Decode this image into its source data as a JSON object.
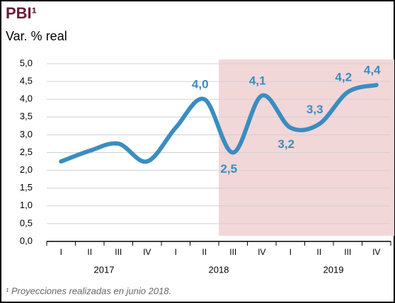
{
  "chart_data": {
    "type": "line",
    "title": "PBI¹",
    "subtitle": "Var. % real",
    "footnote": "¹ Proyecciones realizadas en junio 2018.",
    "categories": [
      "I",
      "II",
      "III",
      "IV",
      "I",
      "II",
      "III",
      "IV",
      "I",
      "II",
      "III",
      "IV"
    ],
    "years": [
      "2017",
      "2018",
      "2019"
    ],
    "series": [
      {
        "color": "#3a8dc0",
        "values": [
          2.25,
          2.55,
          2.75,
          2.25,
          3.2,
          4.0,
          2.5,
          4.1,
          3.2,
          3.3,
          4.2,
          4.4
        ],
        "value_labels": [
          null,
          null,
          null,
          null,
          null,
          "4,0",
          "2,5",
          "4,1",
          "3,2",
          "3,3",
          "4,2",
          "4,4"
        ]
      }
    ],
    "ylim": [
      0,
      5
    ],
    "yticks": [
      {
        "value": 0,
        "label": "0,0"
      },
      {
        "value": 0.5,
        "label": "0,5"
      },
      {
        "value": 1,
        "label": "1,0"
      },
      {
        "value": 1.5,
        "label": "1,5"
      },
      {
        "value": 2,
        "label": "2,0"
      },
      {
        "value": 2.5,
        "label": "2,5"
      },
      {
        "value": 3,
        "label": "3,0"
      },
      {
        "value": 3.5,
        "label": "3,5"
      },
      {
        "value": 4,
        "label": "4,0"
      },
      {
        "value": 4.5,
        "label": "4,5"
      },
      {
        "value": 5,
        "label": "5,0"
      }
    ],
    "grid": true,
    "projection_start_index": 6,
    "projection_color": "#f2d7d9"
  }
}
